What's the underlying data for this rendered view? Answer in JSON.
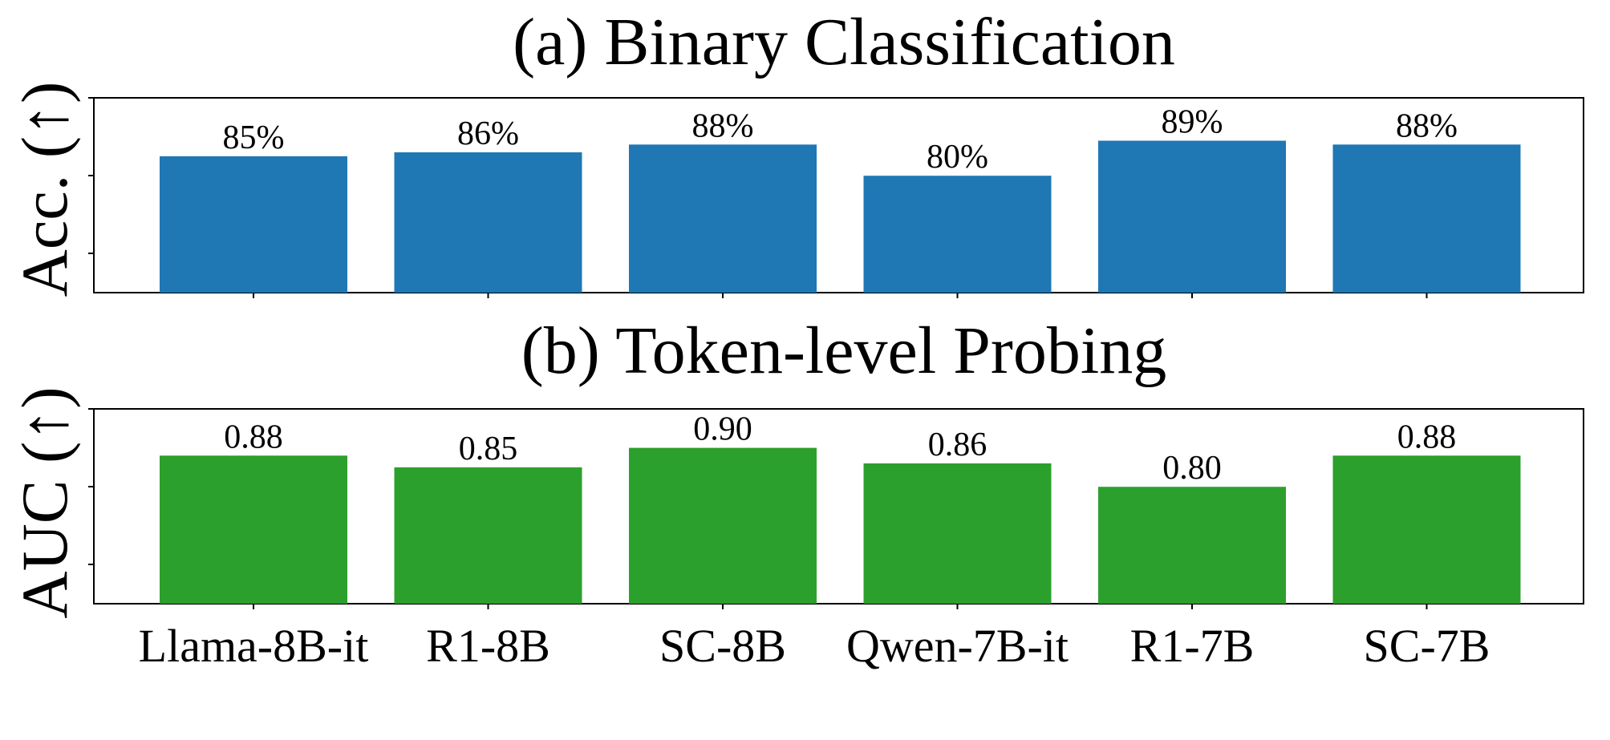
{
  "colors": {
    "panel_a_bar": "#1f77b4",
    "panel_b_bar": "#2ca02c",
    "axis": "#000000",
    "background": "#ffffff"
  },
  "chart_data": [
    {
      "type": "bar",
      "title": "(a) Binary Classification",
      "ylabel": "Acc. (↑)",
      "xlabel": "",
      "categories": [
        "Llama-8B-it",
        "R1-8B",
        "SC-8B",
        "Qwen-7B-it",
        "R1-7B",
        "SC-7B"
      ],
      "values": [
        85,
        86,
        88,
        80,
        89,
        88
      ],
      "value_labels": [
        "85%",
        "86%",
        "88%",
        "80%",
        "89%",
        "88%"
      ],
      "unit": "%",
      "ylim": [
        50,
        100
      ],
      "grid": false,
      "y_tick_labels_shown": false,
      "x_tick_labels_shown": false
    },
    {
      "type": "bar",
      "title": "(b) Token-level Probing",
      "ylabel": "AUC (↑)",
      "xlabel": "",
      "categories": [
        "Llama-8B-it",
        "R1-8B",
        "SC-8B",
        "Qwen-7B-it",
        "R1-7B",
        "SC-7B"
      ],
      "values": [
        0.88,
        0.85,
        0.9,
        0.86,
        0.8,
        0.88
      ],
      "value_labels": [
        "0.88",
        "0.85",
        "0.90",
        "0.86",
        "0.80",
        "0.88"
      ],
      "unit": "",
      "ylim": [
        0.5,
        1.0
      ],
      "grid": false,
      "y_tick_labels_shown": false,
      "x_tick_labels_shown": true
    }
  ]
}
